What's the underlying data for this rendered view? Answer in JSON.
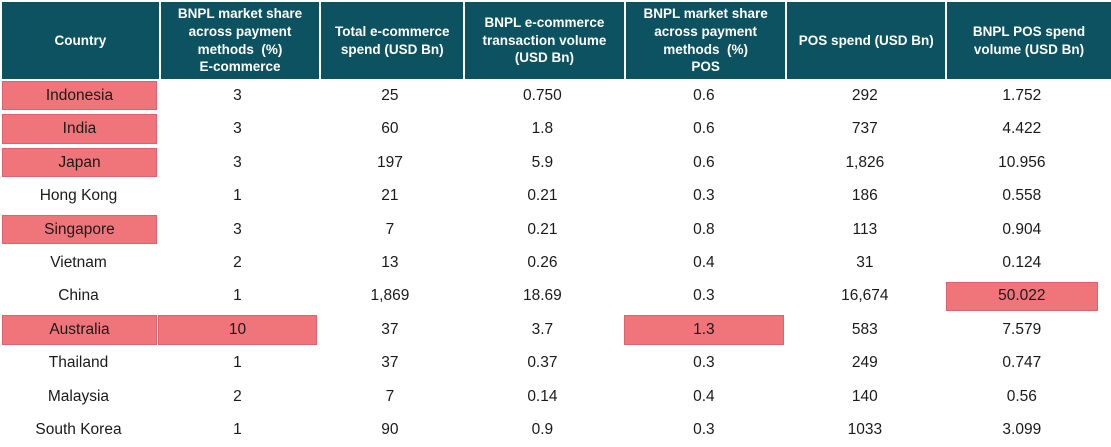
{
  "colors": {
    "header_bg": "#0D5260",
    "header_text": "#FFFFFF",
    "highlight_bg": "#F0757B",
    "highlight_border": "#E0616C",
    "body_text": "#1A1A1A"
  },
  "chart_data": {
    "type": "table",
    "columns": [
      "Country",
      "BNPL market share\nacross payment\nmethods  (%)\nE-commerce",
      "Total e-commerce\nspend (USD Bn)",
      "BNPL e-commerce\ntransaction volume\n(USD Bn)",
      "BNPL market share\nacross payment\nmethods  (%)\nPOS",
      "POS spend (USD Bn)",
      "BNPL POS spend\nvolume (USD Bn)"
    ],
    "rows": [
      {
        "country": "Indonesia",
        "values": [
          "3",
          "25",
          "0.750",
          "0.6",
          "292",
          "1.752"
        ],
        "highlights": [
          0
        ]
      },
      {
        "country": "India",
        "values": [
          "3",
          "60",
          "1.8",
          "0.6",
          "737",
          "4.422"
        ],
        "highlights": [
          0
        ]
      },
      {
        "country": "Japan",
        "values": [
          "3",
          "197",
          "5.9",
          "0.6",
          "1,826",
          "10.956"
        ],
        "highlights": [
          0
        ]
      },
      {
        "country": "Hong Kong",
        "values": [
          "1",
          "21",
          "0.21",
          "0.3",
          "186",
          "0.558"
        ],
        "highlights": []
      },
      {
        "country": "Singapore",
        "values": [
          "3",
          "7",
          "0.21",
          "0.8",
          "113",
          "0.904"
        ],
        "highlights": [
          0
        ]
      },
      {
        "country": "Vietnam",
        "values": [
          "2",
          "13",
          "0.26",
          "0.4",
          "31",
          "0.124"
        ],
        "highlights": []
      },
      {
        "country": "China",
        "values": [
          "1",
          "1,869",
          "18.69",
          "0.3",
          "16,674",
          "50.022"
        ],
        "highlights": [
          6
        ]
      },
      {
        "country": "Australia",
        "values": [
          "10",
          "37",
          "3.7",
          "1.3",
          "583",
          "7.579"
        ],
        "highlights": [
          0,
          1,
          4
        ]
      },
      {
        "country": "Thailand",
        "values": [
          "1",
          "37",
          "0.37",
          "0.3",
          "249",
          "0.747"
        ],
        "highlights": []
      },
      {
        "country": "Malaysia",
        "values": [
          "2",
          "7",
          "0.14",
          "0.4",
          "140",
          "0.56"
        ],
        "highlights": []
      },
      {
        "country": "South Korea",
        "values": [
          "1",
          "90",
          "0.9",
          "0.3",
          "1033",
          "3.099"
        ],
        "highlights": []
      }
    ]
  }
}
